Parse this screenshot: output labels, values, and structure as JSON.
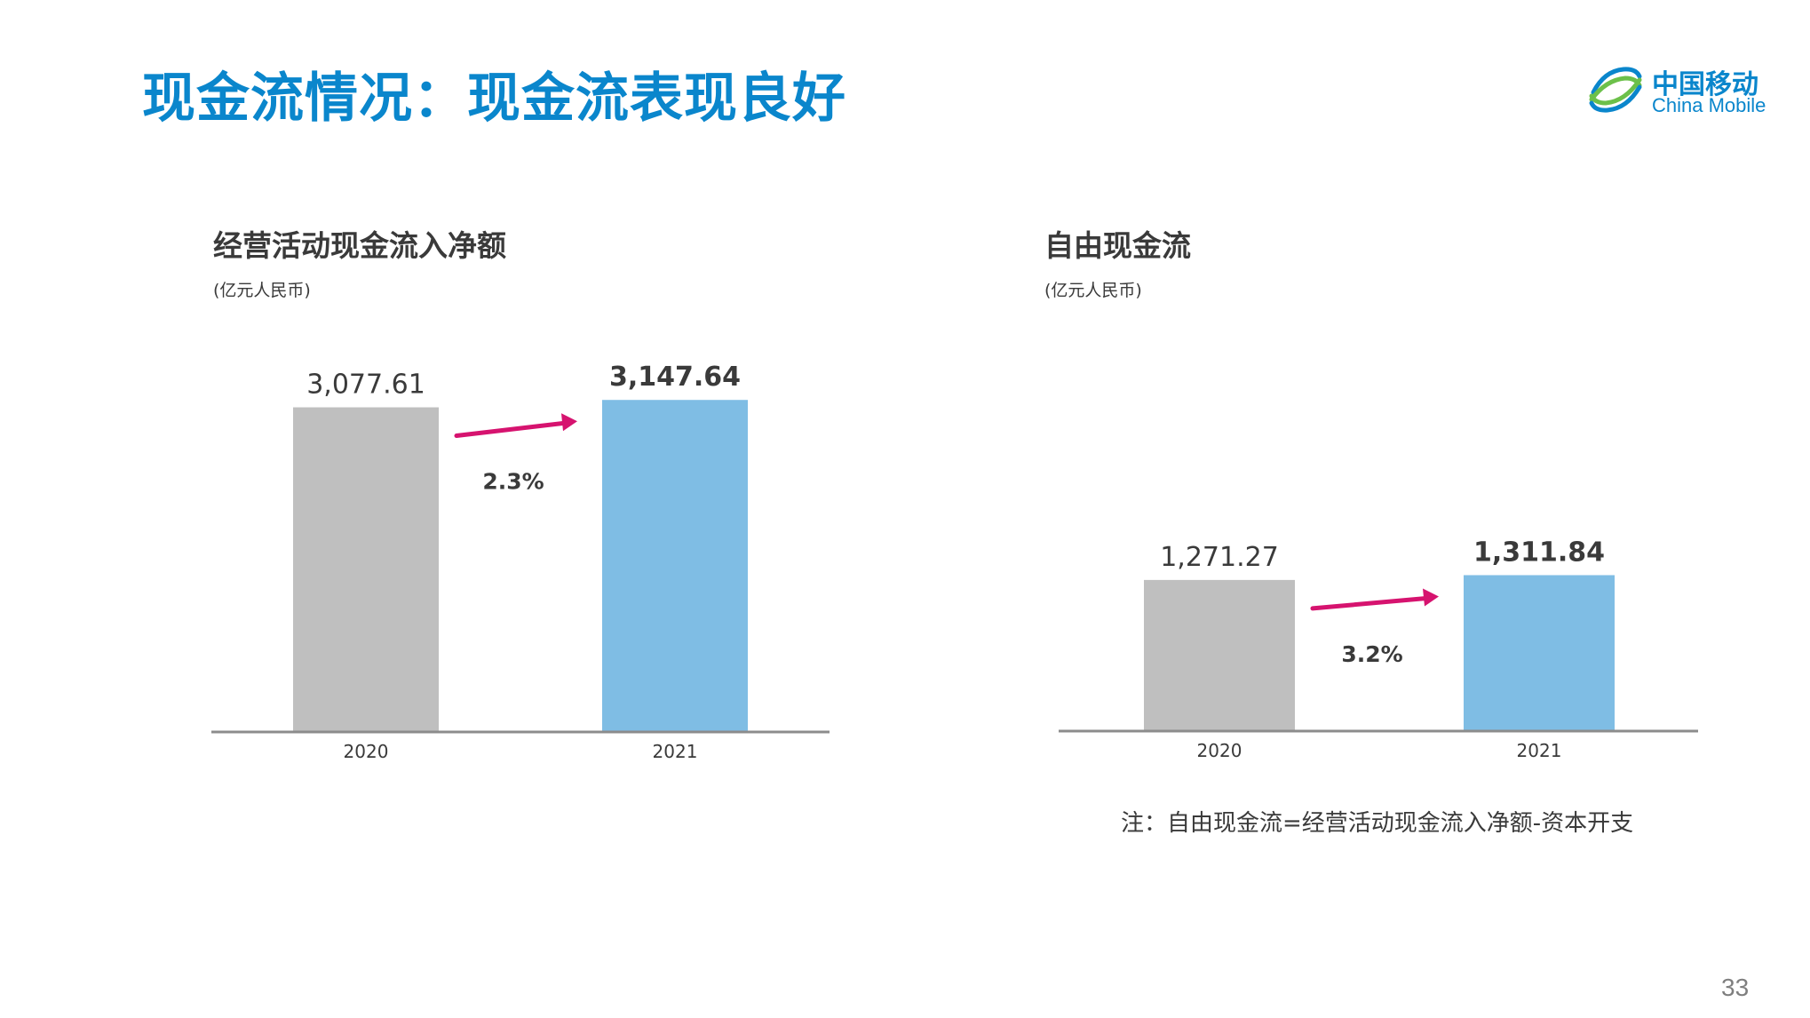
{
  "title": "现金流情况：现金流表现良好",
  "logo": {
    "cn": "中国移动",
    "en": "China Mobile",
    "color": "#0a86cc"
  },
  "note": "注：自由现金流=经营活动现金流入净额-资本开支",
  "page_number": "33",
  "colors": {
    "bar_prior": "#bfbfbf",
    "bar_current": "#7fbde4",
    "arrow": "#d6136f",
    "axis": "#8c8c8c"
  },
  "chart_data": [
    {
      "type": "bar",
      "title": "经营活动现金流入净额",
      "unit": "(亿元人民币)",
      "categories": [
        "2020",
        "2021"
      ],
      "values": [
        3077.61,
        3147.64
      ],
      "value_labels": [
        "3,077.61",
        "3,147.64"
      ],
      "growth_label": "2.3%",
      "ylim": [
        0,
        3200
      ],
      "grid": false,
      "legend": "none"
    },
    {
      "type": "bar",
      "title": "自由现金流",
      "unit": "(亿元人民币)",
      "categories": [
        "2020",
        "2021"
      ],
      "values": [
        1271.27,
        1311.84
      ],
      "value_labels": [
        "1,271.27",
        "1,311.84"
      ],
      "growth_label": "3.2%",
      "ylim": [
        0,
        2840
      ],
      "grid": false,
      "legend": "none"
    }
  ]
}
